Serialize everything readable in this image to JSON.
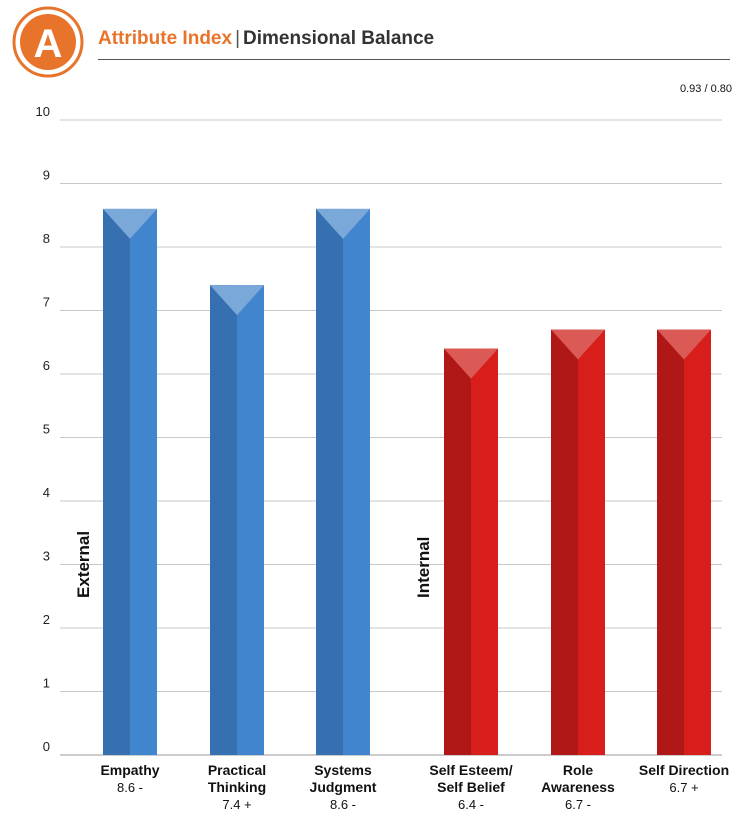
{
  "header": {
    "logo_letter": "A",
    "title_primary": "Attribute Index",
    "title_separator": "|",
    "title_secondary": "Dimensional Balance",
    "ratio": "0.93 / 0.80"
  },
  "colors": {
    "brand_orange": "#e8742b",
    "external_dark": "#3670b0",
    "external_light": "#4285cf",
    "external_cap": "#7aa8d8",
    "internal_dark": "#b01818",
    "internal_light": "#d81e1a",
    "internal_cap": "#dc5a55"
  },
  "chart_data": {
    "type": "bar",
    "ylim": [
      0,
      10
    ],
    "yticks": [
      "0",
      "1",
      "2",
      "3",
      "4",
      "5",
      "6",
      "7",
      "8",
      "9",
      "10"
    ],
    "grid": true,
    "groups": [
      {
        "label": "External",
        "bars": [
          0,
          1,
          2
        ]
      },
      {
        "label": "Internal",
        "bars": [
          3,
          4,
          5
        ]
      }
    ],
    "bars": [
      {
        "label_lines": [
          "Empathy"
        ],
        "value": 8.6,
        "display": "8.6 -",
        "group": "external"
      },
      {
        "label_lines": [
          "Practical",
          "Thinking"
        ],
        "value": 7.4,
        "display": "7.4 +",
        "group": "external"
      },
      {
        "label_lines": [
          "Systems",
          "Judgment"
        ],
        "value": 8.6,
        "display": "8.6 -",
        "group": "external"
      },
      {
        "label_lines": [
          "Self Esteem/",
          "Self Belief"
        ],
        "value": 6.4,
        "display": "6.4 -",
        "group": "internal"
      },
      {
        "label_lines": [
          "Role",
          "Awareness"
        ],
        "value": 6.7,
        "display": "6.7 -",
        "group": "internal"
      },
      {
        "label_lines": [
          "Self Direction"
        ],
        "value": 6.7,
        "display": "6.7 +",
        "group": "internal"
      }
    ]
  }
}
